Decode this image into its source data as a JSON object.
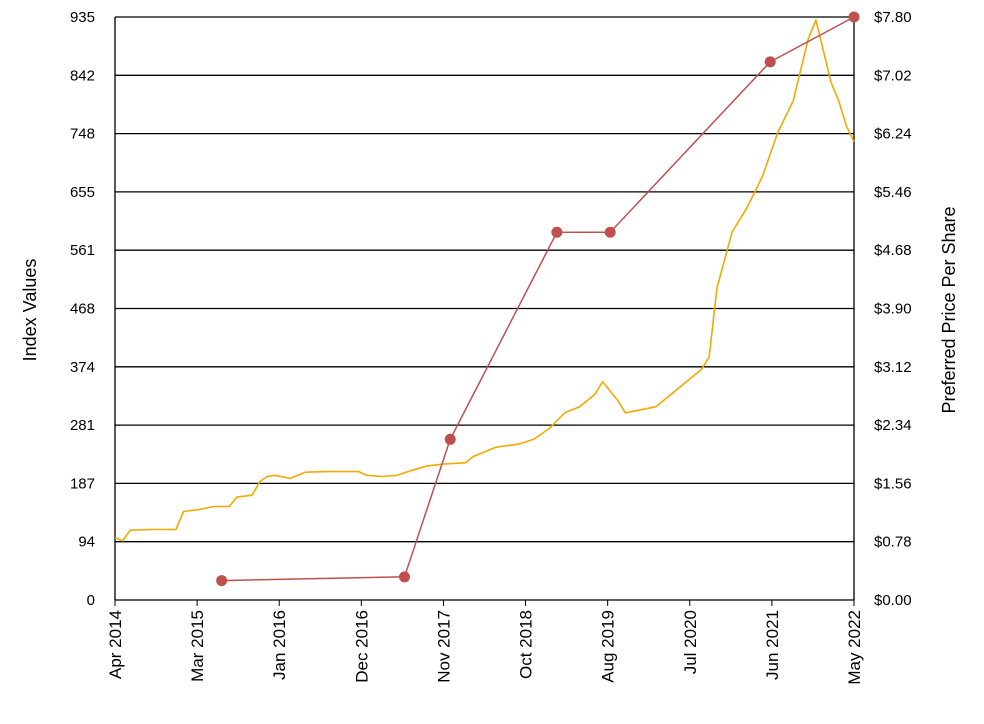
{
  "chart_data": {
    "type": "line",
    "title": "",
    "ylabel_left": "Index Values",
    "ylabel_right": "Preferred Price Per Share",
    "xlim": [
      "2014-04",
      "2022-05"
    ],
    "ylim_left": [
      0,
      935
    ],
    "ylim_right": [
      0,
      7.8
    ],
    "grid": true,
    "colors": {
      "index": "#F5A800",
      "price": "#C0504D",
      "grid": "#000000"
    },
    "x_ticks": [
      "Apr 2014",
      "Mar 2015",
      "Jan 2016",
      "Dec 2016",
      "Nov 2017",
      "Oct 2018",
      "Aug 2019",
      "Jul 2020",
      "Jun 2021",
      "May 2022"
    ],
    "y_ticks_left": [
      "0",
      "94",
      "187",
      "281",
      "374",
      "468",
      "561",
      "655",
      "748",
      "842",
      "935"
    ],
    "y_ticks_right": [
      "$0.00",
      "$0.78",
      "$1.56",
      "$2.34",
      "$3.12",
      "$3.90",
      "$4.68",
      "$5.46",
      "$6.24",
      "$7.02",
      "$7.80"
    ],
    "series": [
      {
        "name": "",
        "axis": "left",
        "points": [
          [
            "2014-04",
            100
          ],
          [
            "2014-05",
            95
          ],
          [
            "2014-06",
            112
          ],
          [
            "2014-09",
            113
          ],
          [
            "2014-12",
            113
          ],
          [
            "2015-01",
            142
          ],
          [
            "2015-03",
            145
          ],
          [
            "2015-05",
            150
          ],
          [
            "2015-07",
            150
          ],
          [
            "2015-08",
            165
          ],
          [
            "2015-10",
            168
          ],
          [
            "2015-11",
            190
          ],
          [
            "2015-12",
            198
          ],
          [
            "2016-01",
            200
          ],
          [
            "2016-03",
            195
          ],
          [
            "2016-05",
            205
          ],
          [
            "2016-08",
            206
          ],
          [
            "2016-12",
            206
          ],
          [
            "2017-01",
            200
          ],
          [
            "2017-03",
            198
          ],
          [
            "2017-05",
            200
          ],
          [
            "2017-07",
            208
          ],
          [
            "2017-09",
            215
          ],
          [
            "2017-11",
            218
          ],
          [
            "2018-02",
            220
          ],
          [
            "2018-03",
            230
          ],
          [
            "2018-06",
            245
          ],
          [
            "2018-09",
            250
          ],
          [
            "2018-11",
            258
          ],
          [
            "2019-01",
            275
          ],
          [
            "2019-03",
            300
          ],
          [
            "2019-05",
            310
          ],
          [
            "2019-07",
            330
          ],
          [
            "2019-08",
            350
          ],
          [
            "2019-10",
            320
          ],
          [
            "2019-11",
            300
          ],
          [
            "2020-01",
            305
          ],
          [
            "2020-03",
            310
          ],
          [
            "2020-05",
            330
          ],
          [
            "2020-07",
            350
          ],
          [
            "2020-09",
            370
          ],
          [
            "2020-10",
            390
          ],
          [
            "2020-11",
            500
          ],
          [
            "2021-01",
            590
          ],
          [
            "2021-03",
            630
          ],
          [
            "2021-05",
            680
          ],
          [
            "2021-07",
            750
          ],
          [
            "2021-09",
            800
          ],
          [
            "2021-11",
            900
          ],
          [
            "2021-12",
            930
          ],
          [
            "2022-02",
            830
          ],
          [
            "2022-03",
            800
          ],
          [
            "2022-04",
            760
          ],
          [
            "2022-05",
            735
          ]
        ]
      },
      {
        "name": "",
        "axis": "right",
        "points": [
          [
            "2015-06",
            0.26
          ],
          [
            "2017-06",
            0.31
          ],
          [
            "2017-12",
            2.15
          ],
          [
            "2019-02",
            4.92
          ],
          [
            "2019-09",
            4.92
          ],
          [
            "2021-06",
            7.2
          ],
          [
            "2022-05",
            7.8
          ]
        ]
      }
    ]
  }
}
